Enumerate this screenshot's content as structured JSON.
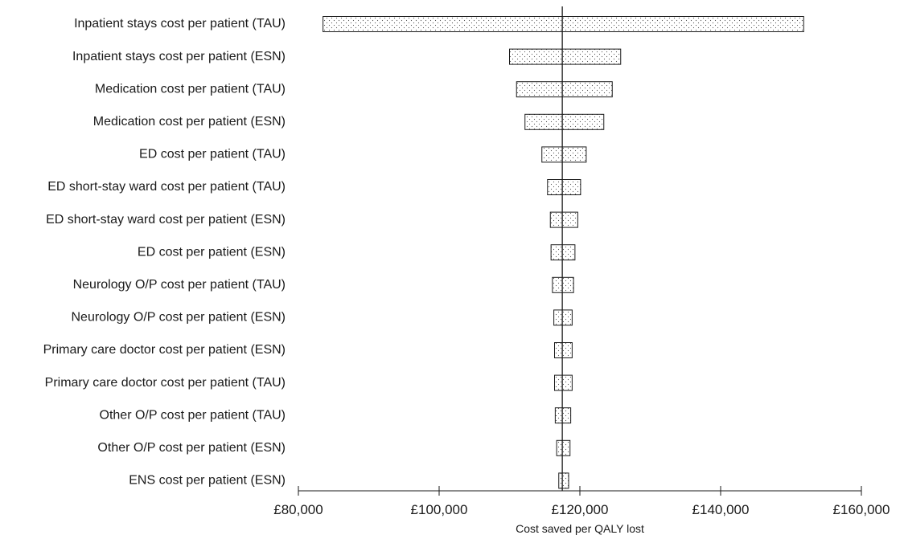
{
  "chart_data": {
    "type": "bar",
    "subtype": "tornado",
    "orientation": "horizontal",
    "xlabel": "Cost saved per QALY lost",
    "xlim": [
      80000,
      160000
    ],
    "x_ticks": [
      80000,
      100000,
      120000,
      140000,
      160000
    ],
    "x_tick_labels": [
      "£80,000",
      "£100,000",
      "£120,000",
      "£140,000",
      "£160,000"
    ],
    "base_value": 117500,
    "bar_pattern": "dotted",
    "categories": [
      "Inpatient stays cost per patient (TAU)",
      "Inpatient stays cost per patient (ESN)",
      "Medication cost per patient (TAU)",
      "Medication cost per patient (ESN)",
      "ED cost per patient (TAU)",
      "ED short-stay ward cost per patient (TAU)",
      "ED short-stay ward cost per patient (ESN)",
      "ED cost per patient (ESN)",
      "Neurology O/P cost per patient (TAU)",
      "Neurology O/P cost per patient (ESN)",
      "Primary care doctor cost per patient (ESN)",
      "Primary care doctor cost per patient (TAU)",
      "Other O/P cost per patient (TAU)",
      "Other O/P cost per patient (ESN)",
      "ENS cost per patient (ESN)"
    ],
    "ranges": [
      [
        83500,
        151800
      ],
      [
        110000,
        125800
      ],
      [
        111000,
        124600
      ],
      [
        112200,
        123400
      ],
      [
        114600,
        120900
      ],
      [
        115400,
        120100
      ],
      [
        115800,
        119700
      ],
      [
        115900,
        119300
      ],
      [
        116100,
        119100
      ],
      [
        116300,
        118900
      ],
      [
        116400,
        118900
      ],
      [
        116400,
        118900
      ],
      [
        116500,
        118700
      ],
      [
        116700,
        118600
      ],
      [
        117000,
        118400
      ]
    ]
  }
}
